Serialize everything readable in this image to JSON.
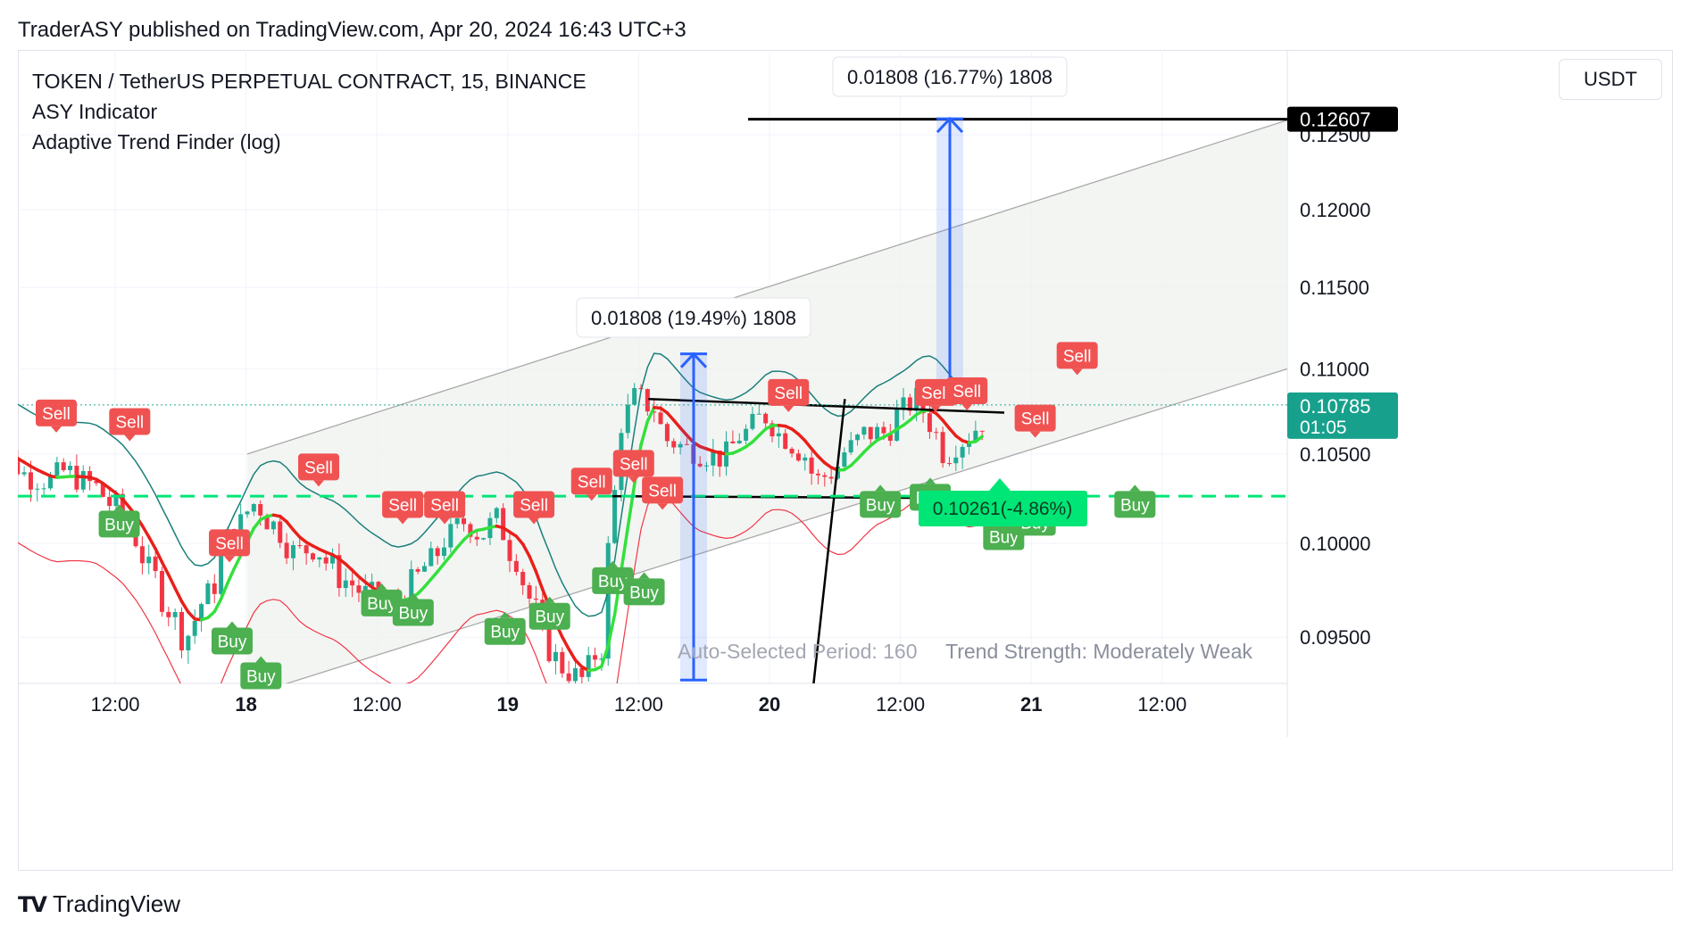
{
  "header": {
    "published": "TraderASY published on TradingView.com, Apr 20, 2024 16:43 UTC+3"
  },
  "legend": {
    "symbol": "TOKEN / TetherUS PERPETUAL CONTRACT, 15, BINANCE",
    "indicator1": "ASY Indicator",
    "indicator2": "Adaptive Trend Finder (log)"
  },
  "currency": "USDT",
  "footer": {
    "brand": "TradingView",
    "icon": "tradingview-logo-icon"
  },
  "colors": {
    "up": "#22ab94",
    "down": "#f23645",
    "buy": "#4caf50",
    "sell": "#f05252",
    "trend_green": "#33e03c",
    "trend_red": "#e8201a",
    "envelope": "#1a7f7a",
    "measure": "#2962ff",
    "stop": "#00e676",
    "channel": "#a9a9a9"
  },
  "chart_data": {
    "type": "candlestick",
    "y_axis": {
      "ticks": [
        "0.12500",
        "0.12000",
        "0.11500",
        "0.11000",
        "0.10500",
        "0.10000",
        "0.09500"
      ],
      "range": [
        0.091,
        0.129
      ]
    },
    "x_axis": {
      "ticks": [
        "12:00",
        "18",
        "12:00",
        "19",
        "12:00",
        "20",
        "12:00",
        "21",
        "12:00"
      ],
      "bold_ticks": [
        "18",
        "19",
        "20",
        "21"
      ]
    },
    "last_price": {
      "value": "0.10785",
      "countdown": "01:05"
    },
    "target_label": "0.12607",
    "measure_1": {
      "text": "0.01808 (19.49%) 1808",
      "from": 0.0928,
      "to": 0.1109
    },
    "measure_2": {
      "text": "0.01808 (16.77%) 1808",
      "from": 0.108,
      "to": 0.1261
    },
    "stop_label": "0.10261(-4.86%)",
    "stop_level": 0.10261,
    "target_level": 0.12607,
    "resistance_line": {
      "from": [
        12.7,
        0.1082
      ],
      "to": [
        30.0,
        0.1074
      ]
    },
    "support_line": {
      "from": [
        12.5,
        0.10261
      ],
      "to": [
        30.0,
        0.1025
      ]
    },
    "trend_impulse": {
      "from": [
        11.5,
        0.0925
      ],
      "to": [
        12.7,
        0.1082
      ]
    },
    "channel": {
      "upper": {
        "from": [
          10.0,
          0.105
        ],
        "to": [
          38.6,
          0.126
        ]
      },
      "lower": {
        "from": [
          10.0,
          0.092
        ],
        "to": [
          38.6,
          0.11
        ]
      },
      "start_hour": 10.0
    },
    "footer_text": {
      "period": "Auto-Selected Period: 160",
      "strength": "Trend Strength: Moderately Weak"
    },
    "anchors": [
      {
        "t": 0,
        "p": 0.1052
      },
      {
        "t": 1,
        "p": 0.1045
      },
      {
        "t": 1.7,
        "p": 0.1037
      },
      {
        "t": 2.5,
        "p": 0.1035
      },
      {
        "t": 3,
        "p": 0.104
      },
      {
        "t": 4,
        "p": 0.1033
      },
      {
        "t": 5,
        "p": 0.102
      },
      {
        "t": 5.6,
        "p": 0.1005
      },
      {
        "t": 6.3,
        "p": 0.0985
      },
      {
        "t": 7,
        "p": 0.0965
      },
      {
        "t": 7.6,
        "p": 0.095
      },
      {
        "t": 8.5,
        "p": 0.0972
      },
      {
        "t": 9.4,
        "p": 0.1005
      },
      {
        "t": 10.3,
        "p": 0.1022
      },
      {
        "t": 11,
        "p": 0.101
      },
      {
        "t": 11.8,
        "p": 0.0995
      },
      {
        "t": 12.6,
        "p": 0.0998
      },
      {
        "t": 13,
        "p": 0.099
      },
      {
        "t": 13.7,
        "p": 0.098
      },
      {
        "t": 14.6,
        "p": 0.0972
      },
      {
        "t": 15.4,
        "p": 0.0965
      },
      {
        "t": 16.2,
        "p": 0.0978
      },
      {
        "t": 17,
        "p": 0.099
      },
      {
        "t": 17.6,
        "p": 0.1003
      },
      {
        "t": 18.3,
        "p": 0.1012
      },
      {
        "t": 18.9,
        "p": 0.1005
      },
      {
        "t": 19.5,
        "p": 0.1013
      },
      {
        "t": 20.1,
        "p": 0.0995
      },
      {
        "t": 20.8,
        "p": 0.097
      },
      {
        "t": 21.4,
        "p": 0.0945
      },
      {
        "t": 22,
        "p": 0.0935
      },
      {
        "t": 22.7,
        "p": 0.0928
      },
      {
        "t": 23.5,
        "p": 0.0945
      },
      {
        "t": 23.9,
        "p": 0.102
      },
      {
        "t": 24.3,
        "p": 0.107
      },
      {
        "t": 24.8,
        "p": 0.1083
      },
      {
        "t": 25.4,
        "p": 0.1078
      },
      {
        "t": 26,
        "p": 0.1058
      },
      {
        "t": 26.8,
        "p": 0.1053
      },
      {
        "t": 27.5,
        "p": 0.105
      },
      {
        "t": 28.1,
        "p": 0.1048
      },
      {
        "t": 28.9,
        "p": 0.1062
      },
      {
        "t": 29.7,
        "p": 0.1072
      },
      {
        "t": 30.4,
        "p": 0.106
      },
      {
        "t": 31.1,
        "p": 0.1052
      },
      {
        "t": 31.7,
        "p": 0.1035
      },
      {
        "t": 32.3,
        "p": 0.104
      },
      {
        "t": 32.9,
        "p": 0.1053
      },
      {
        "t": 33.6,
        "p": 0.1062
      },
      {
        "t": 34.3,
        "p": 0.1062
      },
      {
        "t": 34.9,
        "p": 0.1075
      },
      {
        "t": 35.5,
        "p": 0.1082
      },
      {
        "t": 36,
        "p": 0.1068
      },
      {
        "t": 36.6,
        "p": 0.105
      },
      {
        "t": 37.2,
        "p": 0.1058
      },
      {
        "t": 37.9,
        "p": 0.1066
      },
      {
        "t": 38.2,
        "p": 0.1078
      }
    ],
    "signals": [
      {
        "type": "Sell",
        "t": 0.0,
        "p": 0.1066
      },
      {
        "type": "Sell",
        "t": 2.8,
        "p": 0.1061
      },
      {
        "type": "Buy",
        "t": 2.4,
        "p": 0.1018
      },
      {
        "type": "Sell",
        "t": 6.6,
        "p": 0.0993
      },
      {
        "type": "Buy",
        "t": 6.7,
        "p": 0.0955
      },
      {
        "type": "Buy",
        "t": 7.8,
        "p": 0.0937
      },
      {
        "type": "Sell",
        "t": 10.0,
        "p": 0.1035
      },
      {
        "type": "Sell",
        "t": 13.2,
        "p": 0.1014
      },
      {
        "type": "Sell",
        "t": 14.8,
        "p": 0.1014
      },
      {
        "type": "Buy",
        "t": 12.4,
        "p": 0.0975
      },
      {
        "type": "Buy",
        "t": 13.6,
        "p": 0.097
      },
      {
        "type": "Sell",
        "t": 18.2,
        "p": 0.1014
      },
      {
        "type": "Sell",
        "t": 20.4,
        "p": 0.1027
      },
      {
        "type": "Sell",
        "t": 22.0,
        "p": 0.1037
      },
      {
        "type": "Sell",
        "t": 23.1,
        "p": 0.1022
      },
      {
        "type": "Buy",
        "t": 17.1,
        "p": 0.096
      },
      {
        "type": "Buy",
        "t": 18.8,
        "p": 0.0968
      },
      {
        "type": "Buy",
        "t": 21.2,
        "p": 0.0987
      },
      {
        "type": "Buy",
        "t": 22.4,
        "p": 0.0981
      },
      {
        "type": "Sell",
        "t": 27.9,
        "p": 0.1078
      },
      {
        "type": "Sell",
        "t": 33.5,
        "p": 0.1078
      },
      {
        "type": "Sell",
        "t": 34.7,
        "p": 0.1079
      },
      {
        "type": "Buy",
        "t": 31.4,
        "p": 0.1029
      },
      {
        "type": "Buy",
        "t": 33.3,
        "p": 0.1033
      },
      {
        "type": "Sell",
        "t": 37.3,
        "p": 0.1063
      },
      {
        "type": "Buy",
        "t": 36.1,
        "p": 0.1011
      },
      {
        "type": "Buy",
        "t": 37.3,
        "p": 0.1019
      },
      {
        "type": "Sell",
        "t": 38.9,
        "p": 0.11
      },
      {
        "type": "Buy",
        "t": 41.1,
        "p": 0.1029
      }
    ]
  }
}
